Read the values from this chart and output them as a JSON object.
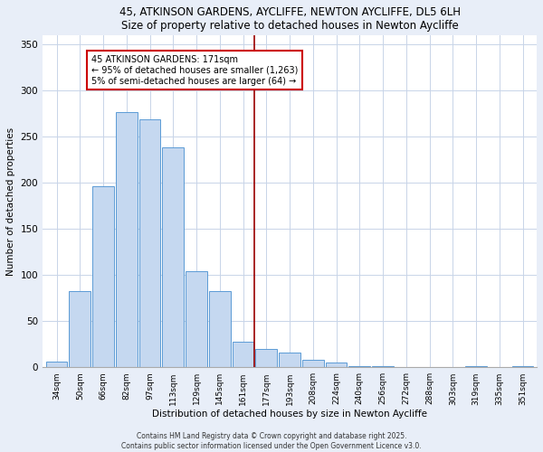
{
  "title1": "45, ATKINSON GARDENS, AYCLIFFE, NEWTON AYCLIFFE, DL5 6LH",
  "title2": "Size of property relative to detached houses in Newton Aycliffe",
  "xlabel": "Distribution of detached houses by size in Newton Aycliffe",
  "ylabel": "Number of detached properties",
  "bar_labels": [
    "34sqm",
    "50sqm",
    "66sqm",
    "82sqm",
    "97sqm",
    "113sqm",
    "129sqm",
    "145sqm",
    "161sqm",
    "177sqm",
    "193sqm",
    "208sqm",
    "224sqm",
    "240sqm",
    "256sqm",
    "272sqm",
    "288sqm",
    "303sqm",
    "319sqm",
    "335sqm",
    "351sqm"
  ],
  "bar_values": [
    6,
    83,
    196,
    277,
    269,
    238,
    104,
    83,
    28,
    20,
    16,
    8,
    5,
    1,
    1,
    0,
    0,
    0,
    1,
    0,
    1
  ],
  "bar_color": "#c5d8f0",
  "bar_edge_color": "#5b9bd5",
  "annotation_title": "45 ATKINSON GARDENS: 171sqm",
  "annotation_line1": "← 95% of detached houses are smaller (1,263)",
  "annotation_line2": "5% of semi-detached houses are larger (64) →",
  "vline_color": "#990000",
  "ylim": [
    0,
    360
  ],
  "yticks": [
    0,
    50,
    100,
    150,
    200,
    250,
    300,
    350
  ],
  "footer1": "Contains HM Land Registry data © Crown copyright and database right 2025.",
  "footer2": "Contains public sector information licensed under the Open Government Licence v3.0.",
  "bg_color": "#e8eef8",
  "plot_bg_color": "#ffffff",
  "grid_color": "#c8d4e8"
}
